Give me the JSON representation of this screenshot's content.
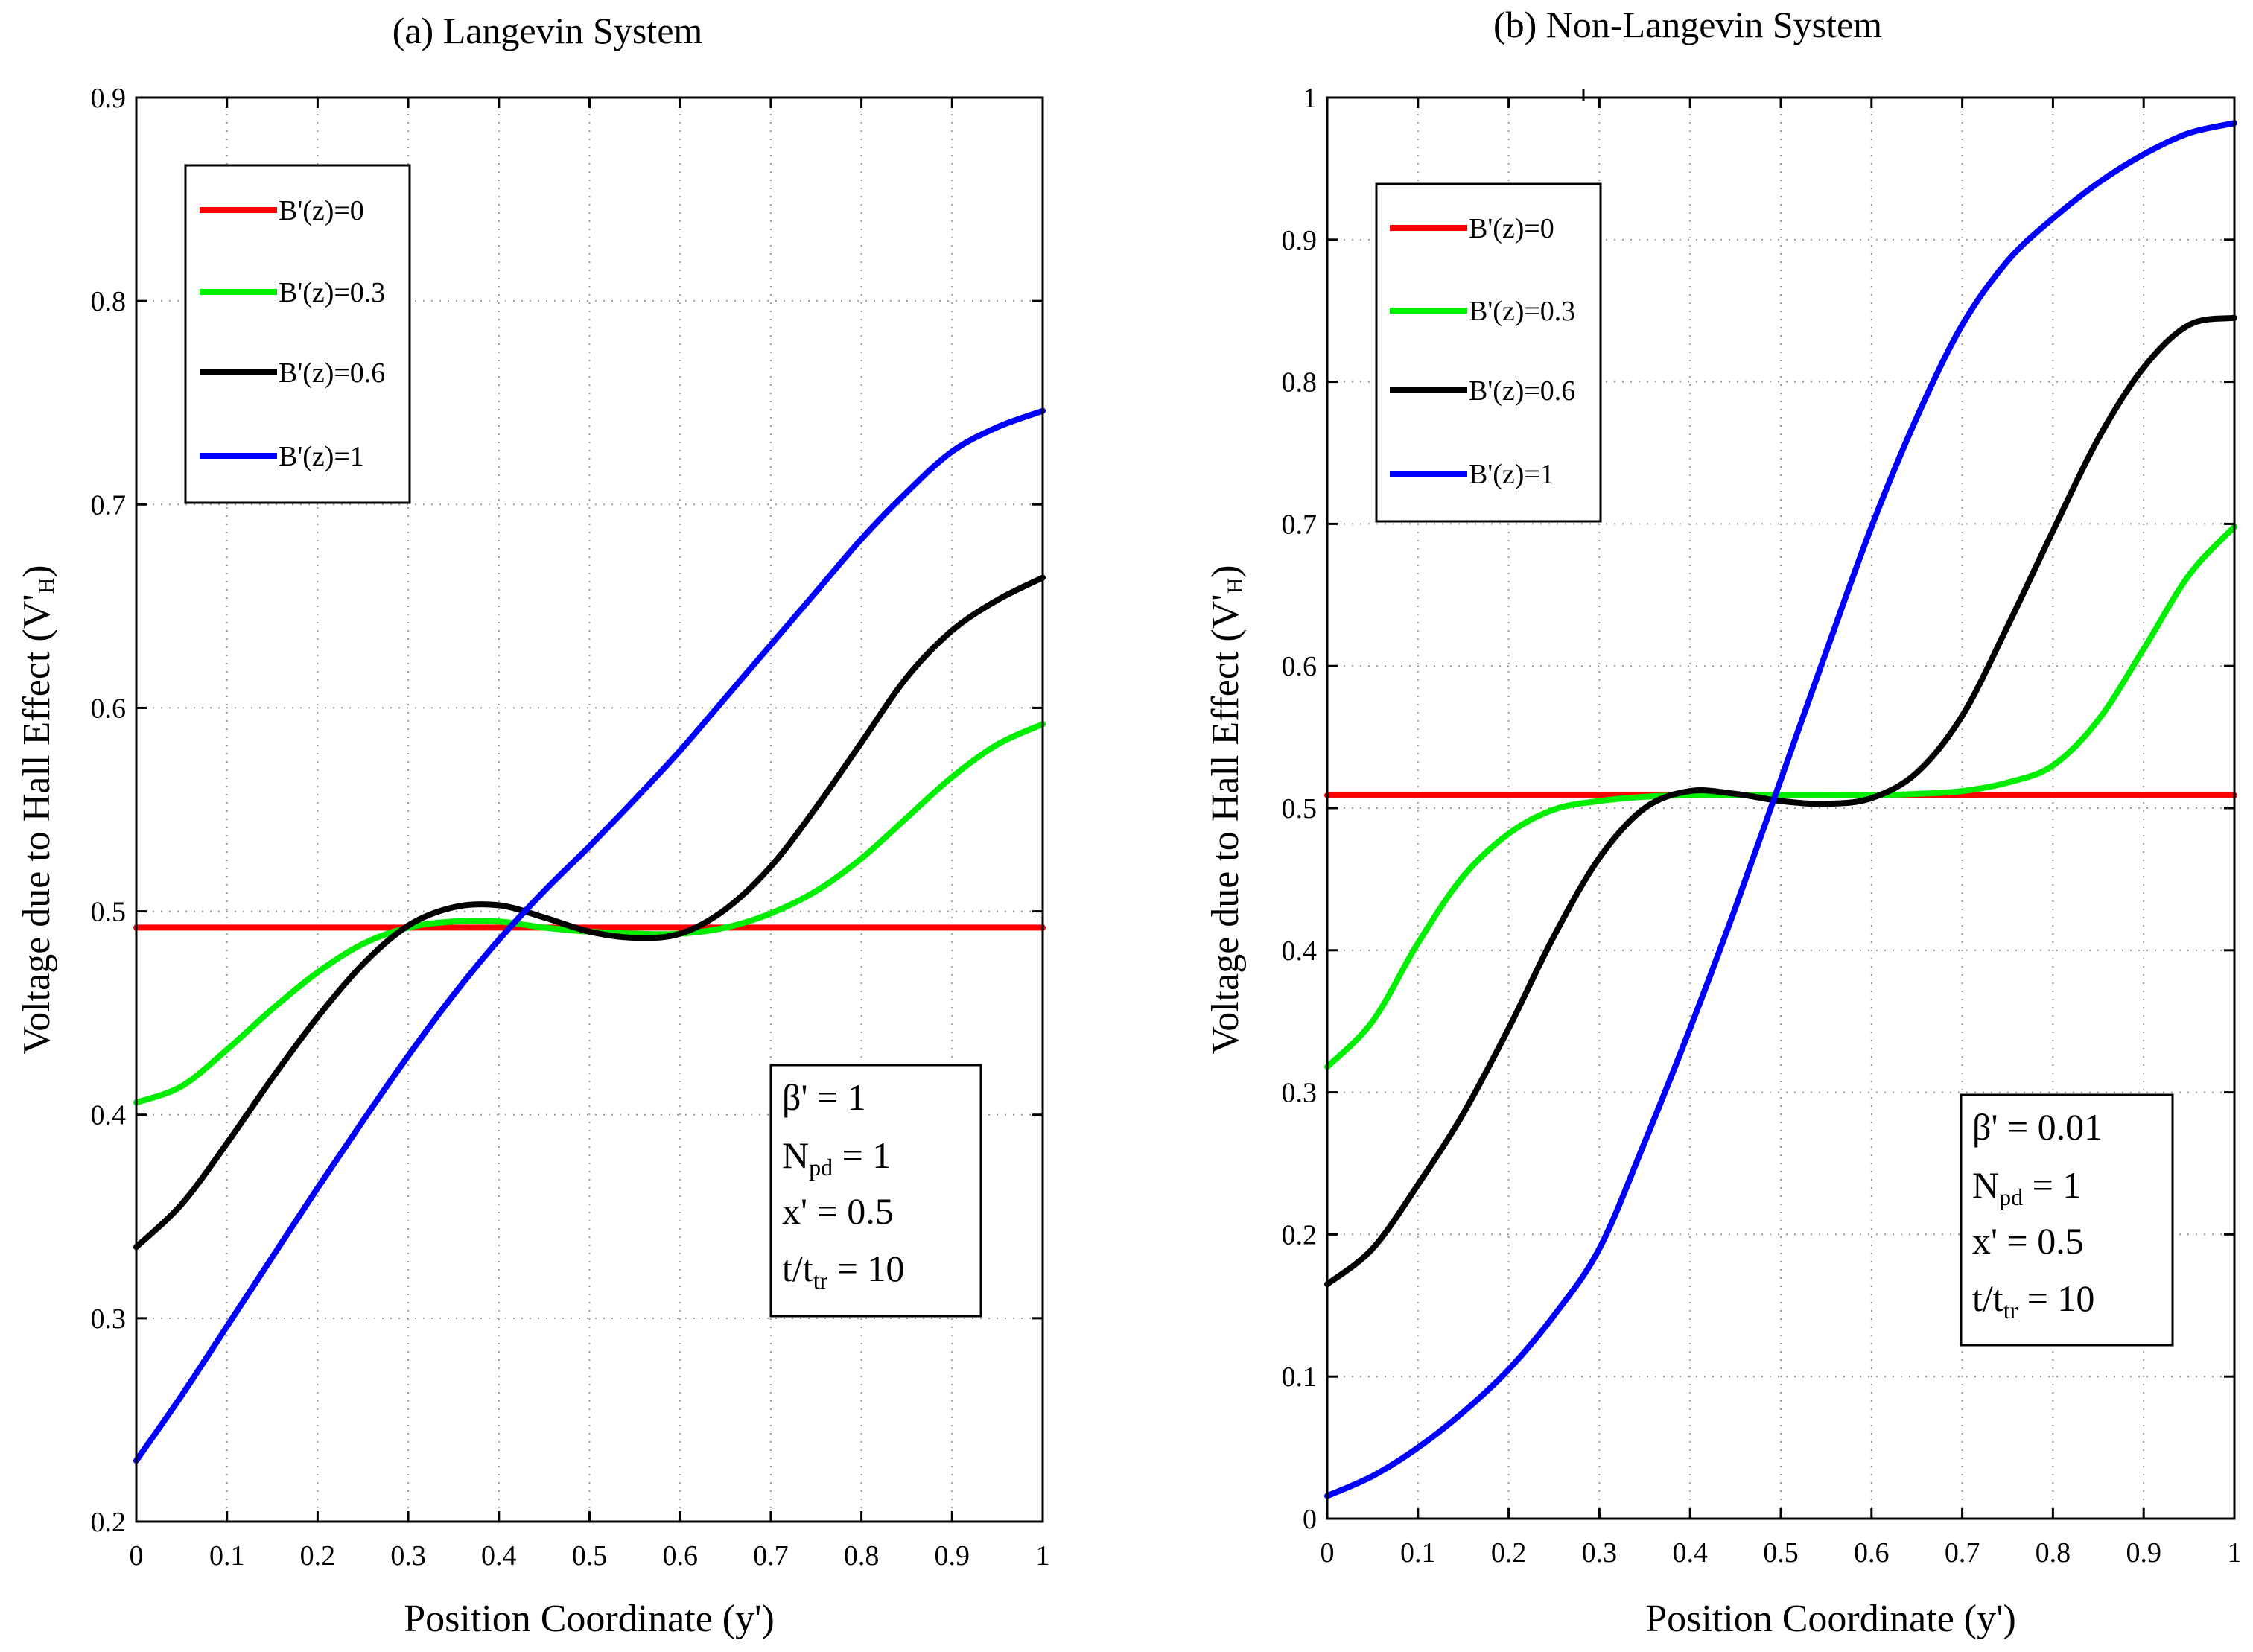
{
  "chart_data": [
    {
      "type": "line",
      "title": "(a) Langevin System",
      "xlabel": "Position Coordinate (y')",
      "ylabel": "Voltage due to Hall Effect (V'",
      "ylabel_sub": "H",
      "ylabel_close": ")",
      "xlim": [
        0,
        1
      ],
      "ylim": [
        0.2,
        0.9
      ],
      "grid": true,
      "legend_position": "top-left",
      "x_ticks": [
        0,
        0.1,
        0.2,
        0.3,
        0.4,
        0.5,
        0.6,
        0.7,
        0.8,
        0.9,
        1
      ],
      "x_tick_labels": [
        "0",
        "0.1",
        "0.2",
        "0.3",
        "0.4",
        "0.5",
        "0.6",
        "0.7",
        "0.8",
        "0.9",
        "1"
      ],
      "y_ticks": [
        0.2,
        0.3,
        0.4,
        0.5,
        0.6,
        0.7,
        0.8,
        0.9
      ],
      "y_tick_labels": [
        "0.2",
        "0.3",
        "0.4",
        "0.5",
        "0.6",
        "0.7",
        "0.8",
        "0.9"
      ],
      "x": [
        0,
        0.05,
        0.1,
        0.15,
        0.2,
        0.25,
        0.3,
        0.35,
        0.4,
        0.45,
        0.5,
        0.55,
        0.6,
        0.65,
        0.7,
        0.75,
        0.8,
        0.85,
        0.9,
        0.95,
        1
      ],
      "series": [
        {
          "name": "B'(z)=0",
          "color": "#ff0000",
          "values": [
            0.492,
            0.492,
            0.492,
            0.492,
            0.492,
            0.492,
            0.492,
            0.492,
            0.492,
            0.492,
            0.492,
            0.492,
            0.492,
            0.492,
            0.492,
            0.492,
            0.492,
            0.492,
            0.492,
            0.492,
            0.492
          ]
        },
        {
          "name": "B'(z)=0.3",
          "color": "#00ee00",
          "values": [
            0.406,
            0.414,
            0.432,
            0.452,
            0.47,
            0.484,
            0.492,
            0.495,
            0.495,
            0.492,
            0.49,
            0.489,
            0.489,
            0.492,
            0.499,
            0.51,
            0.526,
            0.546,
            0.566,
            0.582,
            0.592
          ]
        },
        {
          "name": "B'(z)=0.6",
          "color": "#000000",
          "values": [
            0.335,
            0.356,
            0.386,
            0.418,
            0.448,
            0.474,
            0.493,
            0.502,
            0.503,
            0.497,
            0.49,
            0.487,
            0.489,
            0.501,
            0.522,
            0.551,
            0.583,
            0.615,
            0.638,
            0.653,
            0.664
          ]
        },
        {
          "name": "B'(z)=1",
          "color": "#0000ff",
          "values": [
            0.23,
            0.262,
            0.296,
            0.33,
            0.364,
            0.397,
            0.429,
            0.459,
            0.486,
            0.51,
            0.532,
            0.555,
            0.579,
            0.605,
            0.631,
            0.657,
            0.683,
            0.706,
            0.726,
            0.738,
            0.746
          ]
        }
      ],
      "annotation": {
        "beta": "β' = 1",
        "npd_main": "N",
        "npd_sub": "pd",
        "npd_value": " = 1",
        "x_prime": "x' = 0.5",
        "t_main": "t/t",
        "t_sub": "tr",
        "t_value": " = 10"
      }
    },
    {
      "type": "line",
      "title": "(b) Non-Langevin System",
      "xlabel": "Position Coordinate (y')",
      "ylabel": "Voltage due to Hall Effect (V'",
      "ylabel_sub": "H",
      "ylabel_close": ")",
      "xlim": [
        0,
        1
      ],
      "ylim": [
        0,
        1
      ],
      "grid": true,
      "legend_position": "top-left",
      "x_ticks": [
        0,
        0.1,
        0.2,
        0.3,
        0.4,
        0.5,
        0.6,
        0.7,
        0.8,
        0.9,
        1
      ],
      "x_tick_labels": [
        "0",
        "0.1",
        "0.2",
        "0.3",
        "0.4",
        "0.5",
        "0.6",
        "0.7",
        "0.8",
        "0.9",
        "1"
      ],
      "y_ticks": [
        0,
        0.1,
        0.2,
        0.3,
        0.4,
        0.5,
        0.6,
        0.7,
        0.8,
        0.9,
        1
      ],
      "y_tick_labels": [
        "0",
        "0.1",
        "0.2",
        "0.3",
        "0.4",
        "0.5",
        "0.6",
        "0.7",
        "0.8",
        "0.9",
        "1"
      ],
      "x": [
        0,
        0.05,
        0.1,
        0.15,
        0.2,
        0.25,
        0.3,
        0.35,
        0.4,
        0.45,
        0.5,
        0.55,
        0.6,
        0.65,
        0.7,
        0.75,
        0.8,
        0.85,
        0.9,
        0.95,
        1
      ],
      "series": [
        {
          "name": "B'(z)=0",
          "color": "#ff0000",
          "values": [
            0.509,
            0.509,
            0.509,
            0.509,
            0.509,
            0.509,
            0.509,
            0.509,
            0.509,
            0.509,
            0.509,
            0.509,
            0.509,
            0.509,
            0.509,
            0.509,
            0.509,
            0.509,
            0.509,
            0.509,
            0.509
          ]
        },
        {
          "name": "B'(z)=0.3",
          "color": "#00ee00",
          "values": [
            0.318,
            0.35,
            0.405,
            0.452,
            0.482,
            0.499,
            0.505,
            0.508,
            0.509,
            0.509,
            0.509,
            0.509,
            0.509,
            0.51,
            0.512,
            0.518,
            0.53,
            0.562,
            0.612,
            0.664,
            0.698
          ]
        },
        {
          "name": "B'(z)=0.6",
          "color": "#000000",
          "values": [
            0.165,
            0.19,
            0.235,
            0.285,
            0.345,
            0.41,
            0.465,
            0.5,
            0.512,
            0.51,
            0.505,
            0.503,
            0.507,
            0.525,
            0.565,
            0.628,
            0.695,
            0.76,
            0.81,
            0.84,
            0.845
          ]
        },
        {
          "name": "B'(z)=1",
          "color": "#0000ff",
          "values": [
            0.016,
            0.03,
            0.05,
            0.075,
            0.105,
            0.143,
            0.19,
            0.265,
            0.345,
            0.43,
            0.52,
            0.61,
            0.698,
            0.775,
            0.84,
            0.885,
            0.915,
            0.94,
            0.96,
            0.975,
            0.982
          ]
        }
      ],
      "annotation": {
        "beta": "β' = 0.01",
        "npd_main": "N",
        "npd_sub": "pd",
        "npd_value": " = 1",
        "x_prime": "x' = 0.5",
        "t_main": "t/t",
        "t_sub": "tr",
        "t_value": " = 10"
      }
    }
  ]
}
